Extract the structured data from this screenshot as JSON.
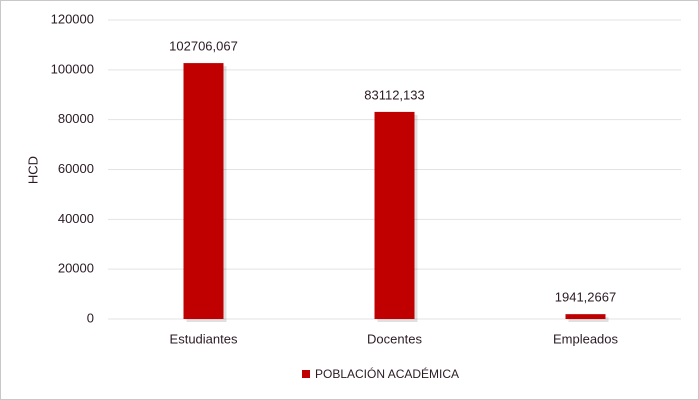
{
  "chart_data": {
    "type": "bar",
    "y_label": "HCD",
    "categories": [
      "Estudiantes",
      "Docentes",
      "Empleados"
    ],
    "series": [
      {
        "name": "POBLACIÓN ACADÉMICA",
        "color": "#c00000",
        "values": [
          102706.067,
          83112.133,
          1941.2667
        ],
        "value_labels": [
          "102706,067",
          "83112,133",
          "1941,2667"
        ]
      }
    ],
    "ylim": [
      0,
      120000
    ],
    "yticks": [
      0,
      20000,
      40000,
      60000,
      80000,
      100000,
      120000
    ],
    "grid": true,
    "legend": "bottom"
  }
}
